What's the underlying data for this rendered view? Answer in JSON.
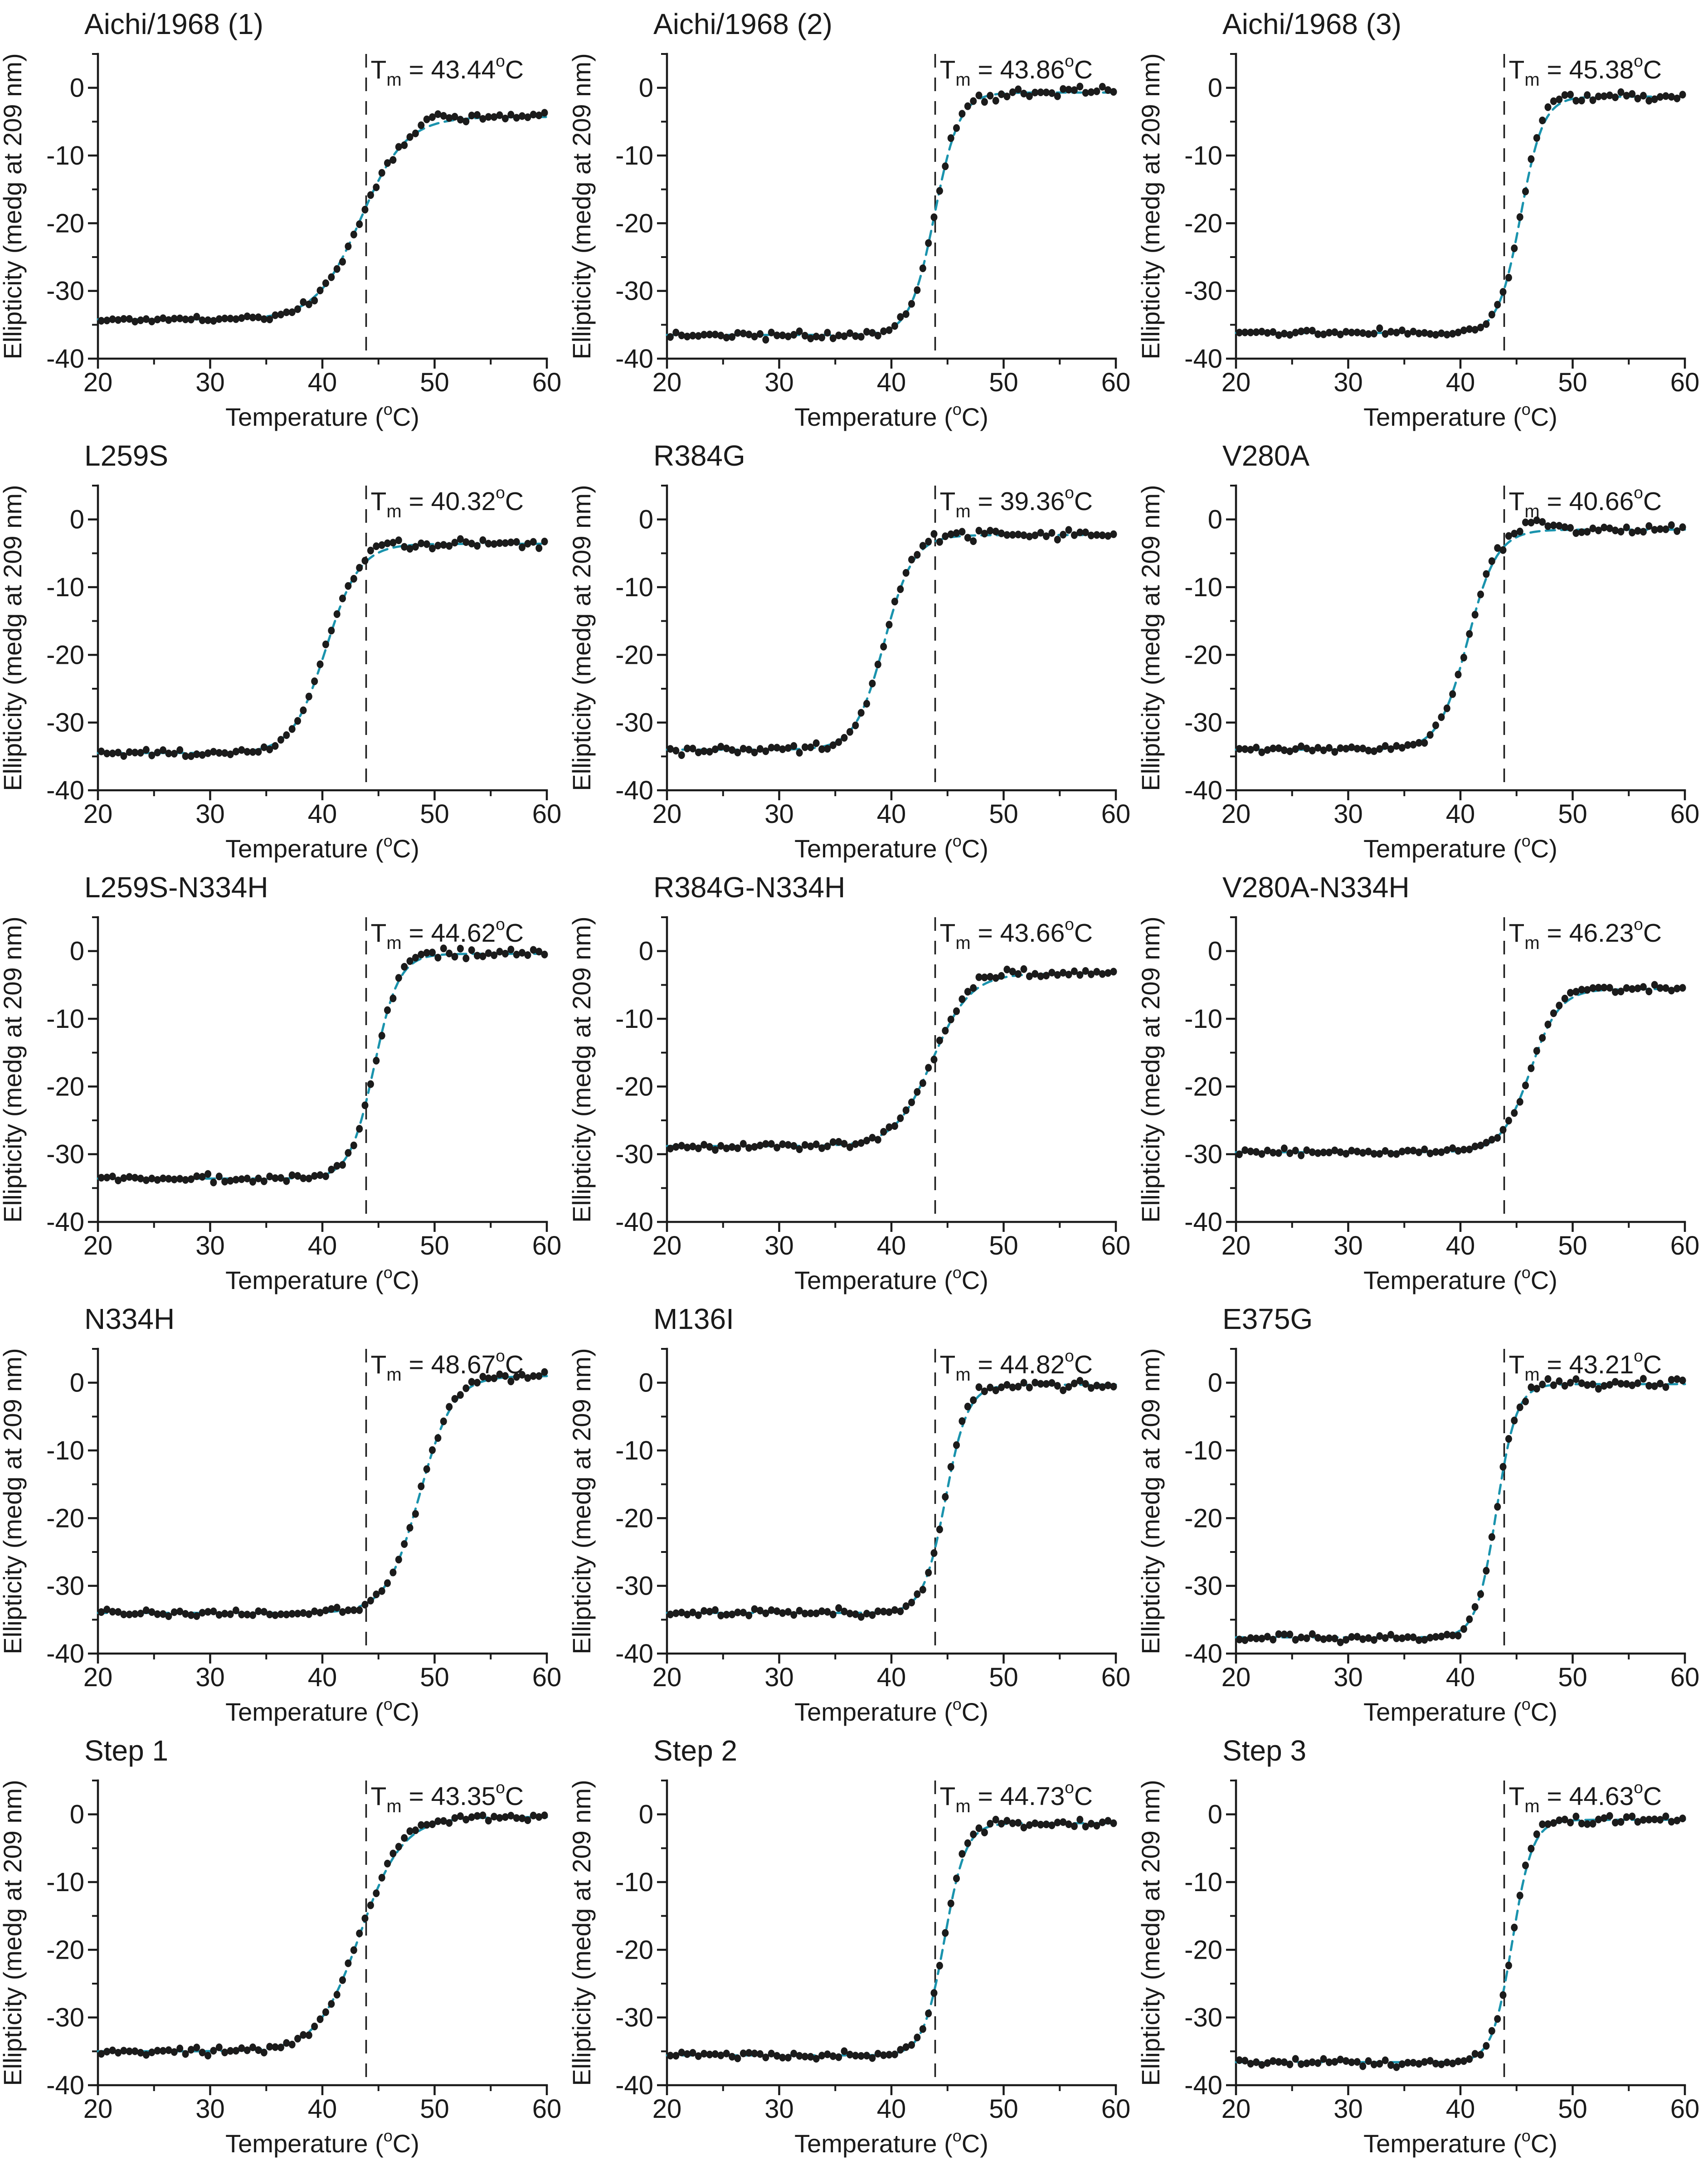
{
  "figure": {
    "ylabel": "Ellipticity (medg at 209 nm)",
    "xlabel_pre": "Temperature (",
    "xlabel_post": "C)",
    "degree_glyph": "o",
    "tm_symbol": "T",
    "tm_subscript": "m",
    "tm_equals": " = ",
    "tm_unit": "C",
    "axis_color": "#1a1a1a",
    "point_color": "#1b1b1b",
    "fit_color": "#1a93ad",
    "reference_line_color": "#1a1a1a"
  },
  "chart_data": {
    "type": "scatter",
    "model": "y = U + (F - U) / (1 + exp((T - Tm)/w)), black dots = measured ellipticity, dashed teal curve = sigmoid fit, vertical dashed line = wild-type reference Tm",
    "shared_axes": {
      "xlabel": "Temperature (oC)",
      "ylabel": "Ellipticity (medg at 209 nm)",
      "xlim": [
        20,
        60
      ],
      "ylim": [
        -40,
        5
      ],
      "x_ticks": [
        20,
        30,
        40,
        50,
        60
      ],
      "x_minor_ticks": [
        25,
        35,
        45,
        55
      ],
      "y_ticks": [
        0,
        -10,
        -20,
        -30,
        -40
      ],
      "y_minor_ticks": [
        5,
        -5,
        -15,
        -25,
        -35
      ],
      "grid": false,
      "reference_line_c": 43.9
    },
    "sampling": {
      "x_start": 20.3,
      "x_end": 59.8,
      "x_step": 0.5
    },
    "panels": [
      {
        "title": "Aichi/1968 (1)",
        "tm_label": "43.44",
        "tm_celsius": 43.44,
        "folded_baseline": -34.2,
        "unfolded_plateau": -4.3,
        "transition_width_c": 2.0,
        "overshoot": {
          "center_c": 50.2,
          "amplitude": 1.1,
          "sigma_c": 1.2
        }
      },
      {
        "title": "Aichi/1968 (2)",
        "tm_label": "43.86",
        "tm_celsius": 43.86,
        "folded_baseline": -36.5,
        "unfolded_plateau": -0.7,
        "transition_width_c": 1.1,
        "overshoot": {
          "center_c": 46.3,
          "amplitude": 0.6,
          "sigma_c": 1.2
        }
      },
      {
        "title": "Aichi/1968 (3)",
        "tm_label": "45.38",
        "tm_celsius": 45.38,
        "folded_baseline": -36.2,
        "unfolded_plateau": -1.3,
        "transition_width_c": 1.0,
        "overshoot": {
          "center_c": 47.6,
          "amplitude": 1.0,
          "sigma_c": 1.4
        }
      },
      {
        "title": "L259S",
        "tm_label": "40.32",
        "tm_celsius": 40.32,
        "folded_baseline": -34.5,
        "unfolded_plateau": -3.6,
        "transition_width_c": 1.5,
        "overshoot": {
          "center_c": 45.3,
          "amplitude": 0.8,
          "sigma_c": 1.5
        }
      },
      {
        "title": "R384G",
        "tm_label": "39.36",
        "tm_celsius": 39.36,
        "folded_baseline": -34.0,
        "unfolded_plateau": -2.3,
        "transition_width_c": 1.3,
        "overshoot": {
          "center_c": 44.5,
          "amplitude": 0.4,
          "sigma_c": 1.5
        }
      },
      {
        "title": "V280A",
        "tm_label": "40.66",
        "tm_celsius": 40.66,
        "folded_baseline": -34.0,
        "unfolded_plateau": -1.5,
        "transition_width_c": 1.3,
        "overshoot": {
          "center_c": 46.8,
          "amplitude": 1.3,
          "sigma_c": 2.0
        }
      },
      {
        "title": "L259S-N334H",
        "tm_label": "44.62",
        "tm_celsius": 44.62,
        "folded_baseline": -33.6,
        "unfolded_plateau": -0.4,
        "transition_width_c": 1.1,
        "overshoot": {
          "center_c": 48.7,
          "amplitude": 0.6,
          "sigma_c": 1.3
        }
      },
      {
        "title": "R384G-N334H",
        "tm_label": "43.66",
        "tm_celsius": 43.66,
        "folded_baseline": -28.8,
        "unfolded_plateau": -3.3,
        "transition_width_c": 1.7,
        "overshoot": {
          "center_c": 48.3,
          "amplitude": 0.9,
          "sigma_c": 1.6
        }
      },
      {
        "title": "V280A-N334H",
        "tm_label": "46.23",
        "tm_celsius": 46.23,
        "folded_baseline": -29.7,
        "unfolded_plateau": -5.6,
        "transition_width_c": 1.3,
        "overshoot": {
          "center_c": 51.0,
          "amplitude": 0.7,
          "sigma_c": 1.5
        }
      },
      {
        "title": "N334H",
        "tm_label": "48.67",
        "tm_celsius": 48.67,
        "folded_baseline": -34.0,
        "unfolded_plateau": 1.0,
        "transition_width_c": 1.5,
        "overshoot": {
          "center_c": 53.6,
          "amplitude": 0.6,
          "sigma_c": 1.5
        }
      },
      {
        "title": "M136I",
        "tm_label": "44.82",
        "tm_celsius": 44.82,
        "folded_baseline": -34.0,
        "unfolded_plateau": -0.3,
        "transition_width_c": 1.0,
        "overshoot": {
          "center_c": 46.6,
          "amplitude": 0.7,
          "sigma_c": 1.2
        }
      },
      {
        "title": "E375G",
        "tm_label": "43.21",
        "tm_celsius": 43.21,
        "folded_baseline": -37.6,
        "unfolded_plateau": -0.2,
        "transition_width_c": 0.9,
        "overshoot": {
          "center_c": 48.2,
          "amplitude": 0.5,
          "sigma_c": 1.6
        }
      },
      {
        "title": "Step 1",
        "tm_label": "43.35",
        "tm_celsius": 43.35,
        "folded_baseline": -35.0,
        "unfolded_plateau": -0.4,
        "transition_width_c": 1.9,
        "overshoot": {
          "center_c": 47.6,
          "amplitude": 0.7,
          "sigma_c": 1.5
        }
      },
      {
        "title": "Step 2",
        "tm_label": "44.73",
        "tm_celsius": 44.73,
        "folded_baseline": -35.6,
        "unfolded_plateau": -1.3,
        "transition_width_c": 0.95,
        "overshoot": {
          "center_c": 46.6,
          "amplitude": 0.8,
          "sigma_c": 1.2
        }
      },
      {
        "title": "Step 3",
        "tm_label": "44.63",
        "tm_celsius": 44.63,
        "folded_baseline": -36.6,
        "unfolded_plateau": -0.8,
        "transition_width_c": 0.9,
        "overshoot": {
          "center_c": 46.7,
          "amplitude": 0.5,
          "sigma_c": 1.2
        }
      }
    ]
  }
}
